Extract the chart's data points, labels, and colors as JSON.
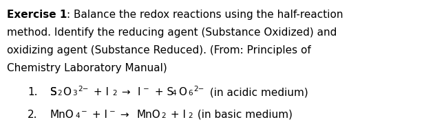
{
  "background_color": "#ffffff",
  "figsize": [
    6.16,
    1.97
  ],
  "dpi": 100,
  "font_family": "DejaVu Sans",
  "font_size": 11.0,
  "font_size_small": 7.5,
  "text_color": "#000000",
  "line1_bold": "Exercise 1",
  "line1_normal": ": Balance the redox reactions using the half-reaction",
  "line2": "method. Identify the reducing agent (Substance Oxidized) and",
  "line3": "oxidizing agent (Substance Reduced). (From: Principles of",
  "line4": "Chemistry Laboratory Manual)",
  "item1_num": "1.",
  "item2_num": "2."
}
